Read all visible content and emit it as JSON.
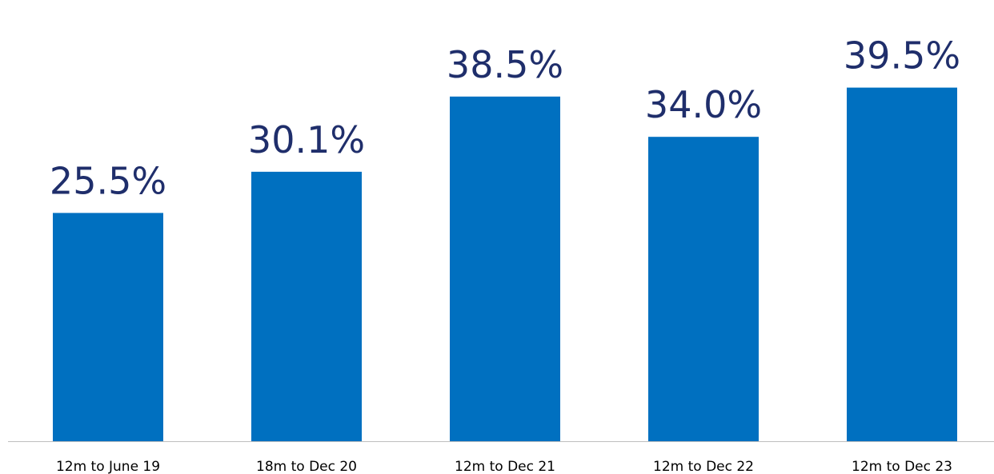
{
  "chart_data": {
    "type": "bar",
    "categories": [
      "12m to June 19",
      "18m to Dec 20",
      "12m to Dec 21",
      "12m to Dec 22",
      "12m to Dec 23"
    ],
    "values": [
      25.5,
      30.1,
      38.5,
      34.0,
      39.5
    ],
    "data_labels": [
      "25.5%",
      "30.1%",
      "38.5%",
      "34.0%",
      "39.5%"
    ],
    "title": "",
    "xlabel": "",
    "ylabel": "",
    "ylim": [
      0,
      40
    ],
    "grid": false,
    "legend": "none",
    "colors": {
      "bar": "#0070C0",
      "label": "#1F2E6B",
      "axis": "#BFBFBF",
      "category_text": "#000000"
    }
  }
}
